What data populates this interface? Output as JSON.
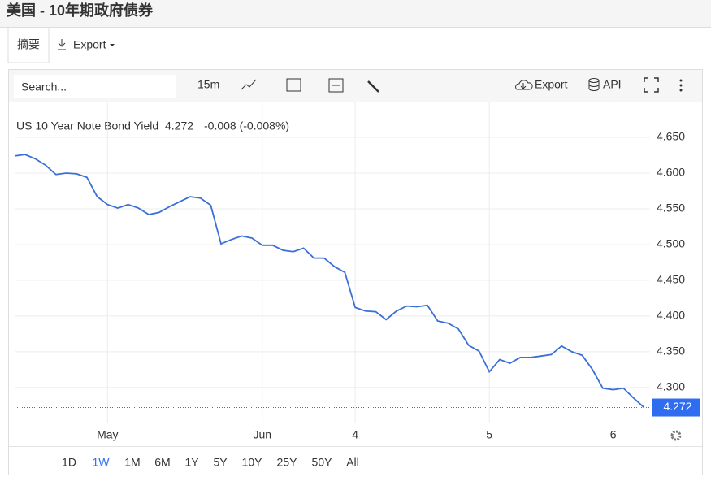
{
  "header": {
    "title": "美国 - 10年期政府债券"
  },
  "tabs": [
    "摘要",
    "Export"
  ],
  "toolbar": {
    "search_placeholder": "Search...",
    "interval": "15m",
    "export": "Export",
    "api": "API"
  },
  "chart_data": {
    "type": "line",
    "series": [
      {
        "name": "US 10 Year Note Bond Yield",
        "color": "#3a6fd8",
        "values": [
          4.624,
          4.626,
          4.62,
          4.611,
          4.598,
          4.6,
          4.599,
          4.594,
          4.567,
          4.556,
          4.551,
          4.556,
          4.551,
          4.542,
          4.545,
          4.553,
          4.56,
          4.567,
          4.565,
          4.555,
          4.501,
          4.507,
          4.512,
          4.509,
          4.499,
          4.499,
          4.492,
          4.49,
          4.495,
          4.481,
          4.481,
          4.469,
          4.461,
          4.412,
          4.407,
          4.406,
          4.395,
          4.407,
          4.414,
          4.413,
          4.415,
          4.393,
          4.39,
          4.382,
          4.359,
          4.351,
          4.322,
          4.339,
          4.334,
          4.342,
          4.342,
          4.344,
          4.346,
          4.358,
          4.35,
          4.345,
          4.325,
          4.299,
          4.297,
          4.299,
          4.285,
          4.272
        ]
      }
    ],
    "categories": [
      null,
      null,
      null,
      null,
      null,
      null,
      null,
      null,
      null,
      "May",
      null,
      null,
      null,
      null,
      null,
      null,
      null,
      null,
      null,
      null,
      null,
      null,
      null,
      null,
      "Jun",
      null,
      null,
      null,
      null,
      null,
      null,
      null,
      null,
      "4",
      null,
      null,
      null,
      null,
      null,
      null,
      null,
      null,
      null,
      null,
      null,
      null,
      "5",
      null,
      null,
      null,
      null,
      null,
      null,
      null,
      null,
      null,
      null,
      null,
      "6",
      null,
      null,
      null
    ],
    "last": 4.272,
    "change": "-0.008 (-0.008%)",
    "ylim": [
      4.251,
      4.7
    ],
    "yticks": [
      {
        "value": 4.3,
        "label": "4.300"
      },
      {
        "value": 4.35,
        "label": "4.350"
      },
      {
        "value": 4.4,
        "label": "4.400"
      },
      {
        "value": 4.45,
        "label": "4.450"
      },
      {
        "value": 4.5,
        "label": "4.500"
      },
      {
        "value": 4.55,
        "label": "4.550"
      },
      {
        "value": 4.6,
        "label": "4.600"
      },
      {
        "value": 4.65,
        "label": "4.650"
      }
    ],
    "grid": true
  },
  "ranges": {
    "items": [
      "1D",
      "1W",
      "1M",
      "6M",
      "1Y",
      "5Y",
      "10Y",
      "25Y",
      "50Y",
      "All"
    ],
    "active": 1
  }
}
